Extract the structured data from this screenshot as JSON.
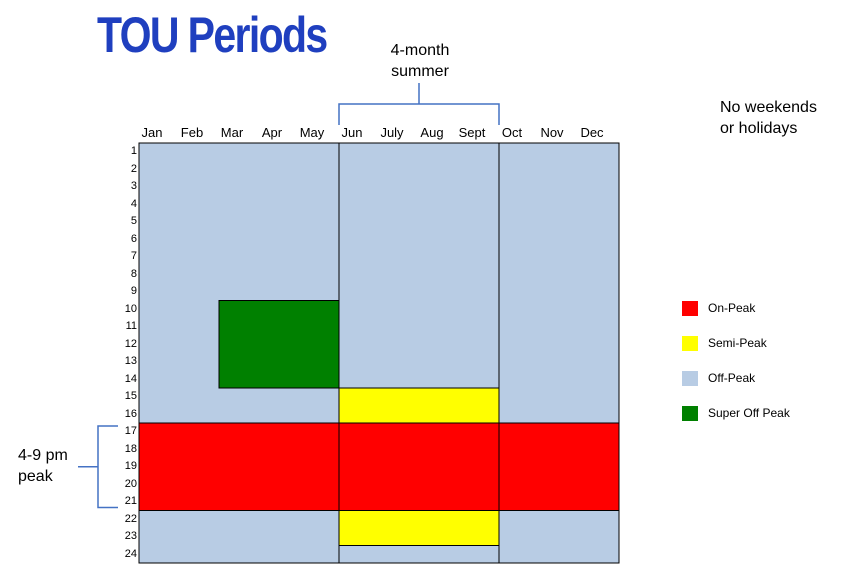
{
  "title": "TOU Periods",
  "annotations": {
    "summer_line1": "4-month",
    "summer_line2": "summer",
    "weekend_line1": "No weekends",
    "weekend_line2": "or holidays",
    "peak_line1": "4-9 pm",
    "peak_line2": "peak"
  },
  "months": [
    "Jan",
    "Feb",
    "Mar",
    "Apr",
    "May",
    "Jun",
    "July",
    "Aug",
    "Sept",
    "Oct",
    "Nov",
    "Dec"
  ],
  "hours": [
    "1",
    "2",
    "3",
    "4",
    "5",
    "6",
    "7",
    "8",
    "9",
    "10",
    "11",
    "12",
    "13",
    "14",
    "15",
    "16",
    "17",
    "18",
    "19",
    "20",
    "21",
    "22",
    "23",
    "24"
  ],
  "colors": {
    "on_peak": "#ff0000",
    "semi_peak": "#ffff00",
    "off_peak": "#b8cce4",
    "super_off_peak": "#008000",
    "title": "#1f3fbf",
    "bracket": "#4472c4"
  },
  "legend": [
    {
      "label": "On-Peak",
      "key": "on_peak"
    },
    {
      "label": "Semi-Peak",
      "key": "semi_peak"
    },
    {
      "label": "Off-Peak",
      "key": "off_peak"
    },
    {
      "label": "Super Off Peak",
      "key": "super_off_peak"
    }
  ],
  "periods": [
    {
      "key": "super_off_peak",
      "month_start": 3,
      "month_end": 5,
      "hour_start": 10,
      "hour_end": 14
    },
    {
      "key": "semi_peak",
      "month_start": 6,
      "month_end": 9,
      "hour_start": 15,
      "hour_end": 16
    },
    {
      "key": "on_peak",
      "month_start": 1,
      "month_end": 12,
      "hour_start": 17,
      "hour_end": 21
    },
    {
      "key": "semi_peak",
      "month_start": 6,
      "month_end": 9,
      "hour_start": 22,
      "hour_end": 23
    }
  ],
  "season_dividers_after_month": [
    5,
    9
  ],
  "summer_months": [
    6,
    9
  ],
  "peak_hours": [
    17,
    21
  ]
}
